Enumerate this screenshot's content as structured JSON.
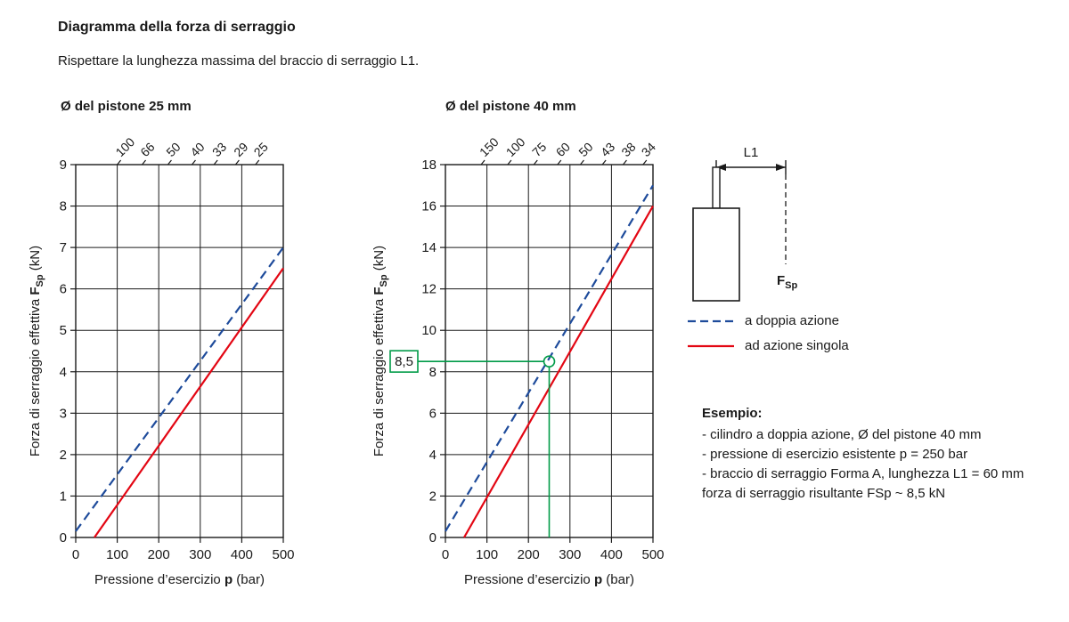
{
  "page": {
    "title": "Diagramma della forza di serraggio",
    "subtitle": "Rispettare la lunghezza massima del braccio di serraggio L1."
  },
  "colors": {
    "blue": "#1e4b9b",
    "red": "#e30613",
    "green": "#009b48",
    "ink": "#1a1a1a"
  },
  "axis_labels": {
    "y_main": "Forza di serraggio effettiva",
    "y_symbol": "F",
    "y_symbol_sub": "Sp",
    "y_unit": "(kN)",
    "x_main": "Pressione d’esercizio",
    "x_symbol": "p",
    "x_unit": "(bar)"
  },
  "chart_data": [
    {
      "type": "line",
      "title": "Ø del pistone 25 mm",
      "xlabel": "Pressione d’esercizio p (bar)",
      "ylabel": "Forza di serraggio effettiva FSp (kN)",
      "xlim": [
        0,
        500
      ],
      "ylim": [
        0,
        9
      ],
      "xticks": [
        0,
        100,
        200,
        300,
        400,
        500
      ],
      "yticks": [
        0,
        1,
        2,
        3,
        4,
        5,
        6,
        7,
        8,
        9
      ],
      "grid": true,
      "top_labels": [
        {
          "text": "100",
          "x": 100
        },
        {
          "text": "66",
          "x": 160
        },
        {
          "text": "50",
          "x": 222
        },
        {
          "text": "40",
          "x": 280
        },
        {
          "text": "33",
          "x": 333
        },
        {
          "text": "29",
          "x": 385
        },
        {
          "text": "25",
          "x": 433
        }
      ],
      "series": [
        {
          "name": "a doppia azione",
          "style": "dashed",
          "color_key": "blue",
          "points": [
            [
              0,
              0.15
            ],
            [
              500,
              7.0
            ]
          ]
        },
        {
          "name": "ad azione singola",
          "style": "solid",
          "color_key": "red",
          "points": [
            [
              45,
              0
            ],
            [
              500,
              6.5
            ]
          ]
        }
      ]
    },
    {
      "type": "line",
      "title": "Ø del pistone 40 mm",
      "xlabel": "Pressione d’esercizio p (bar)",
      "ylabel": "Forza di serraggio effettiva FSp (kN)",
      "xlim": [
        0,
        500
      ],
      "ylim": [
        0,
        18
      ],
      "xticks": [
        0,
        100,
        200,
        300,
        400,
        500
      ],
      "yticks": [
        0,
        2,
        4,
        6,
        8,
        10,
        12,
        14,
        16,
        18
      ],
      "grid": true,
      "top_labels": [
        {
          "text": "150",
          "x": 86
        },
        {
          "text": "100",
          "x": 150
        },
        {
          "text": "75",
          "x": 213
        },
        {
          "text": "60",
          "x": 270
        },
        {
          "text": "50",
          "x": 325
        },
        {
          "text": "43",
          "x": 378
        },
        {
          "text": "38",
          "x": 428
        },
        {
          "text": "34",
          "x": 476
        }
      ],
      "series": [
        {
          "name": "a doppia azione",
          "style": "dashed",
          "color_key": "blue",
          "points": [
            [
              0,
              0.3
            ],
            [
              500,
              17.0
            ]
          ]
        },
        {
          "name": "ad azione singola",
          "style": "solid",
          "color_key": "red",
          "points": [
            [
              45,
              0
            ],
            [
              500,
              16.0
            ]
          ]
        }
      ],
      "annotation": {
        "label": "8,5",
        "x": 250,
        "y": 8.5
      }
    }
  ],
  "legend": {
    "items": [
      {
        "label": "a doppia azione",
        "style": "dashed",
        "color_key": "blue"
      },
      {
        "label": "ad azione singola",
        "style": "solid",
        "color_key": "red"
      }
    ]
  },
  "illustration": {
    "dim_label": "L1",
    "force_symbol": "F",
    "force_sub": "Sp"
  },
  "example": {
    "heading": "Esempio:",
    "lines": [
      "- cilindro a doppia azione, Ø del pistone 40 mm",
      "- pressione di esercizio esistente p = 250 bar",
      "- braccio di serraggio Forma A, lunghezza L1 = 60 mm",
      "forza di serraggio risultante FSp ~ 8,5 kN"
    ]
  }
}
